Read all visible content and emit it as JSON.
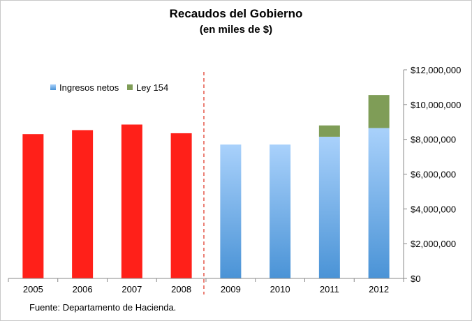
{
  "title": "Recaudos del Gobierno",
  "subtitle": "(en miles de $)",
  "source": "Fuente: Departamento de Hacienda.",
  "colors": {
    "red_bars": "#ff2019",
    "blue_top": "#a9d1fb",
    "blue_bottom": "#4a93d6",
    "green": "#7f9d57",
    "divider": "#e03c2c",
    "axis": "#888888"
  },
  "chart_data": {
    "type": "bar",
    "stacked": true,
    "categories": [
      "2005",
      "2006",
      "2007",
      "2008",
      "2009",
      "2010",
      "2011",
      "2012"
    ],
    "series": [
      {
        "name": "",
        "color": "#ff2019",
        "values": [
          8300000,
          8530000,
          8850000,
          8350000,
          null,
          null,
          null,
          null
        ]
      },
      {
        "name": "Ingresos netos",
        "color": "#6aaae8",
        "values": [
          null,
          null,
          null,
          null,
          7700000,
          7700000,
          8150000,
          8650000
        ]
      },
      {
        "name": "Ley 154",
        "color": "#7f9d57",
        "values": [
          null,
          null,
          null,
          null,
          null,
          null,
          650000,
          1900000
        ]
      }
    ],
    "y_axis": {
      "position": "right",
      "min": 0,
      "max": 12000000,
      "ticks": [
        "$0",
        "$2,000,000",
        "$4,000,000",
        "$6,000,000",
        "$8,000,000",
        "$10,000,000",
        "$12,000,000"
      ]
    },
    "legend": {
      "placement": "top-left",
      "entries": [
        "Ingresos netos",
        "Ley 154"
      ]
    },
    "divider_after_category": "2008",
    "grid": false
  }
}
